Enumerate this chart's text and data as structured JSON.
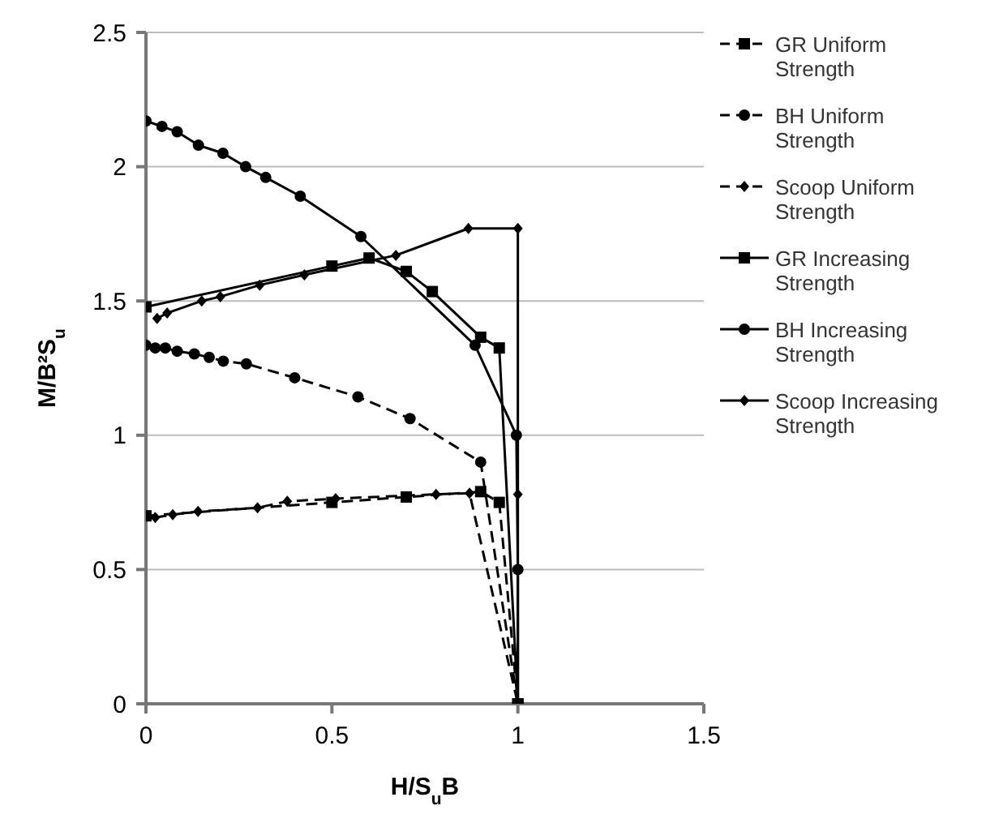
{
  "chart_data": {
    "type": "line",
    "xlabel": "H/S$_{u}$B",
    "ylabel": "M/B²S$_{u}$",
    "xlim": [
      0,
      1.5
    ],
    "xticks": [
      0,
      0.5,
      1,
      1.5
    ],
    "ylim": [
      0,
      2.5
    ],
    "yticks": [
      0,
      0.5,
      1,
      1.5,
      2,
      2.5
    ],
    "grid": "y",
    "legend": "right",
    "series": [
      {
        "name": "GR Uniform Strength",
        "color": "#000000",
        "marker": "square",
        "line_style": "dashed",
        "x": [
          0,
          0.5,
          0.7,
          0.9,
          0.95,
          1
        ],
        "values": [
          0.7,
          0.75,
          0.77,
          0.79,
          0.75,
          0
        ]
      },
      {
        "name": "BH Uniform Strength",
        "color": "#000000",
        "marker": "circle",
        "line_style": "dashed",
        "x": [
          0,
          0.025,
          0.052,
          0.084,
          0.13,
          0.17,
          0.208,
          0.27,
          0.4,
          0.57,
          0.71,
          0.9,
          1
        ],
        "values": [
          1.335,
          1.325,
          1.325,
          1.313,
          1.303,
          1.29,
          1.276,
          1.266,
          1.214,
          1.143,
          1.062,
          0.9,
          0
        ]
      },
      {
        "name": "Scoop Uniform Strength",
        "color": "#000000",
        "marker": "diamond",
        "line_style": "dashed",
        "x": [
          0.025,
          0.072,
          0.14,
          0.3,
          0.38,
          0.51,
          0.78,
          0.87,
          1
        ],
        "values": [
          0.694,
          0.704,
          0.716,
          0.73,
          0.754,
          0.764,
          0.78,
          0.784,
          0
        ]
      },
      {
        "name": "GR Increasing Strength",
        "color": "#000000",
        "marker": "square",
        "line_style": "solid",
        "x": [
          0,
          0.5,
          0.6,
          0.7,
          0.77,
          0.9,
          0.95,
          1
        ],
        "values": [
          1.478,
          1.63,
          1.66,
          1.61,
          1.535,
          1.365,
          1.325,
          0
        ]
      },
      {
        "name": "BH Increasing Strength",
        "color": "#000000",
        "marker": "circle",
        "line_style": "solid",
        "x": [
          0,
          0.043,
          0.084,
          0.141,
          0.207,
          0.268,
          0.322,
          0.415,
          0.578,
          0.885,
          0.996,
          1,
          1
        ],
        "values": [
          2.17,
          2.15,
          2.13,
          2.08,
          2.05,
          2.0,
          1.96,
          1.89,
          1.74,
          1.335,
          1.0,
          0.5,
          0
        ]
      },
      {
        "name": "Scoop Increasing Strength",
        "color": "#000000",
        "marker": "diamond",
        "line_style": "solid",
        "x": [
          0.03,
          0.057,
          0.15,
          0.2,
          0.306,
          0.426,
          0.672,
          0.867,
          1,
          1,
          1
        ],
        "values": [
          1.435,
          1.455,
          1.5,
          1.516,
          1.559,
          1.597,
          1.67,
          1.77,
          1.77,
          0.78,
          0
        ]
      }
    ]
  }
}
